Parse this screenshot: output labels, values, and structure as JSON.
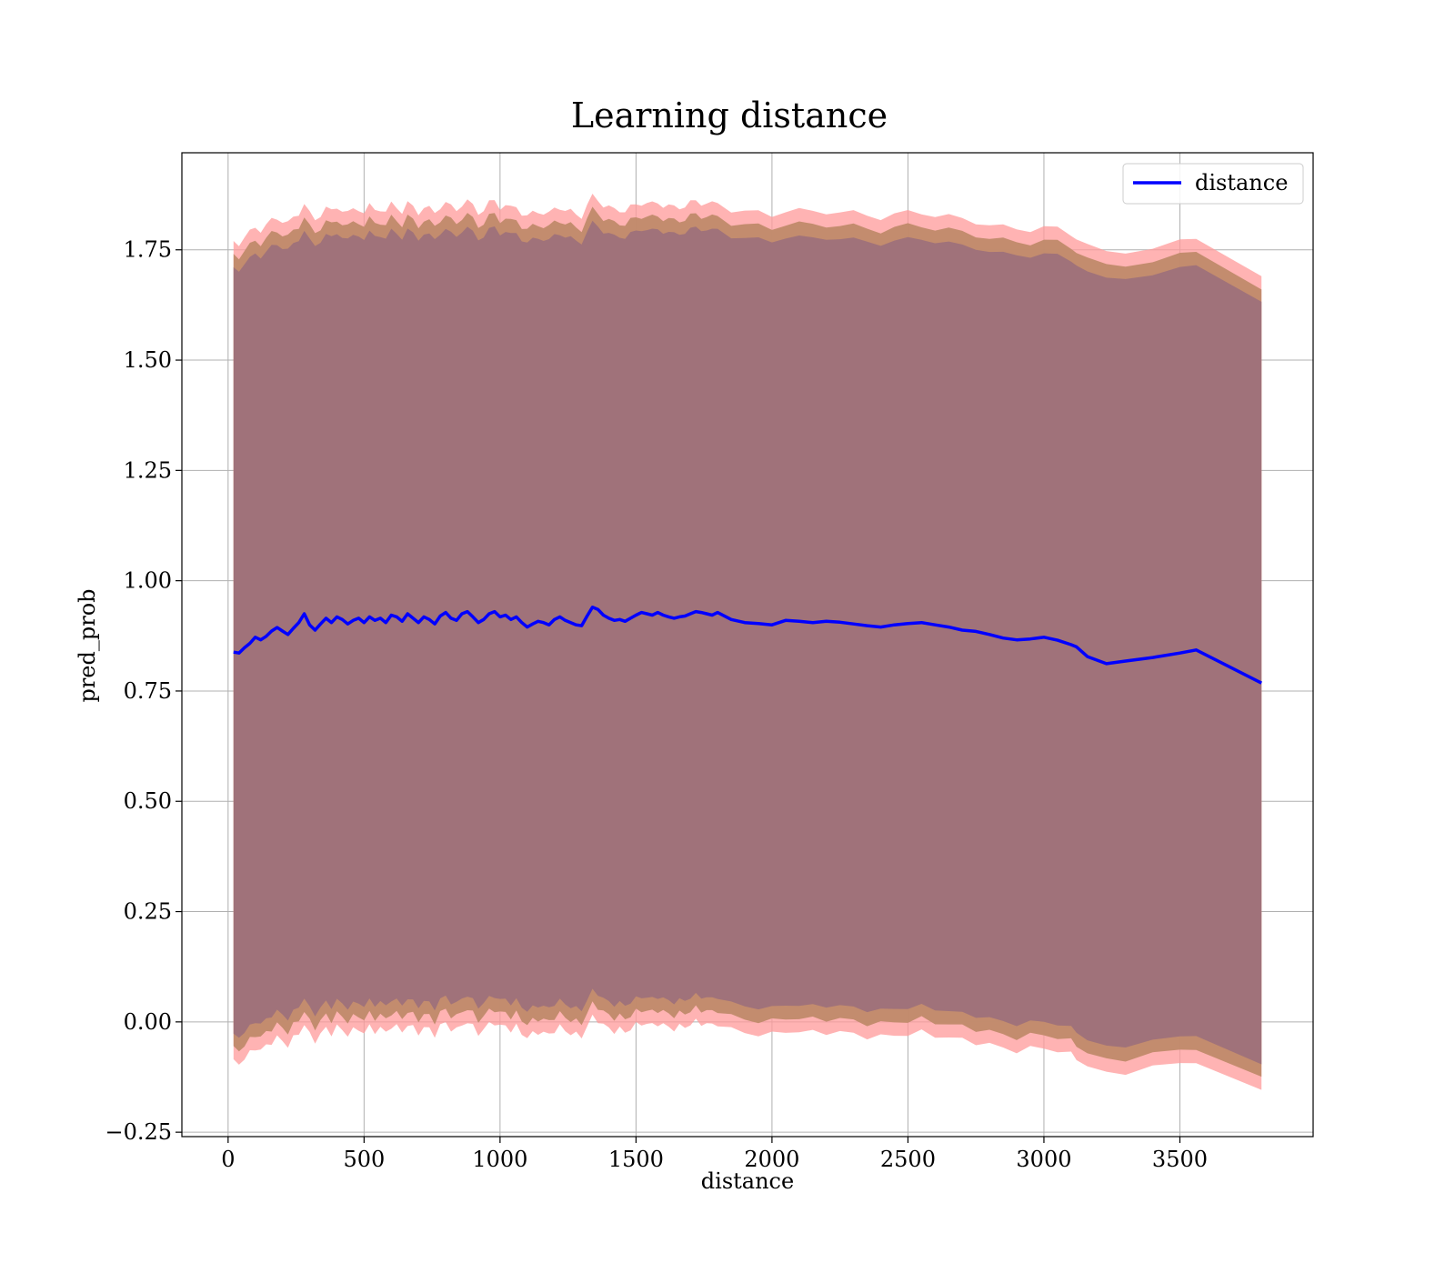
{
  "chart_data": {
    "type": "line",
    "title": "Learning distance",
    "xlabel": "distance",
    "ylabel": "pred_prob",
    "xlim": [
      -170,
      3990
    ],
    "ylim": [
      -0.26,
      1.97
    ],
    "xticks": [
      0,
      500,
      1000,
      1500,
      2000,
      2500,
      3000,
      3500
    ],
    "yticks": [
      -0.25,
      0.0,
      0.25,
      0.5,
      0.75,
      1.0,
      1.25,
      1.5,
      1.75
    ],
    "ytick_labels": [
      "−0.25",
      "0.00",
      "0.25",
      "0.50",
      "0.75",
      "1.00",
      "1.25",
      "1.50",
      "1.75"
    ],
    "grid": true,
    "legend_position": "top-right",
    "colors": {
      "line": "#0000ff",
      "outer_band": "#ff9999",
      "middle_band": "#c08a6a",
      "inner_band": "#a0727a",
      "grid": "#b0b0b0"
    },
    "series": [
      {
        "name": "distance",
        "x": [
          20,
          40,
          60,
          80,
          100,
          120,
          140,
          160,
          180,
          200,
          220,
          240,
          260,
          280,
          300,
          320,
          340,
          360,
          380,
          400,
          420,
          440,
          460,
          480,
          500,
          520,
          540,
          560,
          580,
          600,
          620,
          640,
          660,
          680,
          700,
          720,
          740,
          760,
          780,
          800,
          820,
          840,
          860,
          880,
          900,
          920,
          940,
          960,
          980,
          1000,
          1020,
          1040,
          1060,
          1080,
          1100,
          1120,
          1140,
          1160,
          1180,
          1200,
          1220,
          1240,
          1260,
          1280,
          1300,
          1320,
          1340,
          1360,
          1380,
          1400,
          1420,
          1440,
          1460,
          1480,
          1500,
          1520,
          1540,
          1560,
          1580,
          1600,
          1620,
          1640,
          1660,
          1680,
          1700,
          1720,
          1740,
          1760,
          1780,
          1800,
          1850,
          1900,
          1950,
          2000,
          2050,
          2100,
          2150,
          2200,
          2250,
          2300,
          2350,
          2400,
          2450,
          2500,
          2550,
          2600,
          2650,
          2700,
          2750,
          2800,
          2850,
          2900,
          2950,
          3000,
          3050,
          3100,
          3120,
          3160,
          3230,
          3300,
          3400,
          3500,
          3560,
          3800
        ],
        "y": [
          0.838,
          0.836,
          0.848,
          0.858,
          0.872,
          0.866,
          0.874,
          0.886,
          0.894,
          0.886,
          0.878,
          0.892,
          0.905,
          0.925,
          0.9,
          0.888,
          0.902,
          0.915,
          0.905,
          0.918,
          0.912,
          0.902,
          0.91,
          0.915,
          0.905,
          0.918,
          0.91,
          0.915,
          0.905,
          0.922,
          0.918,
          0.908,
          0.925,
          0.915,
          0.905,
          0.918,
          0.912,
          0.902,
          0.92,
          0.928,
          0.915,
          0.91,
          0.925,
          0.93,
          0.918,
          0.905,
          0.912,
          0.925,
          0.93,
          0.918,
          0.922,
          0.912,
          0.918,
          0.905,
          0.895,
          0.902,
          0.908,
          0.905,
          0.9,
          0.912,
          0.918,
          0.91,
          0.905,
          0.9,
          0.898,
          0.92,
          0.94,
          0.935,
          0.922,
          0.915,
          0.91,
          0.912,
          0.908,
          0.915,
          0.922,
          0.928,
          0.925,
          0.922,
          0.928,
          0.922,
          0.918,
          0.915,
          0.918,
          0.92,
          0.925,
          0.93,
          0.928,
          0.925,
          0.922,
          0.928,
          0.912,
          0.905,
          0.903,
          0.9,
          0.91,
          0.908,
          0.905,
          0.908,
          0.906,
          0.902,
          0.898,
          0.895,
          0.9,
          0.903,
          0.905,
          0.9,
          0.895,
          0.888,
          0.885,
          0.878,
          0.87,
          0.866,
          0.868,
          0.872,
          0.865,
          0.855,
          0.85,
          0.828,
          0.812,
          0.818,
          0.826,
          0.836,
          0.843,
          0.768
        ]
      }
    ]
  }
}
